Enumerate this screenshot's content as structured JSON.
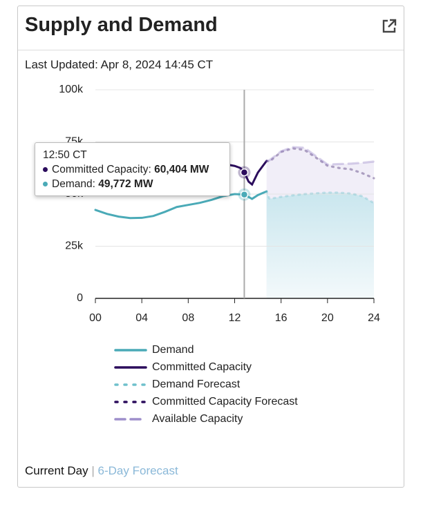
{
  "header": {
    "title": "Supply and Demand",
    "last_updated": "Last Updated: Apr 8, 2024 14:45 CT"
  },
  "chart_data": {
    "type": "line",
    "xlim": [
      0,
      24
    ],
    "xticks": [
      {
        "value": 0,
        "label": "00"
      },
      {
        "value": 4,
        "label": "04"
      },
      {
        "value": 8,
        "label": "08"
      },
      {
        "value": 12,
        "label": "12"
      },
      {
        "value": 16,
        "label": "16"
      },
      {
        "value": 20,
        "label": "20"
      },
      {
        "value": 24,
        "label": "24"
      }
    ],
    "ylim": [
      0,
      100000
    ],
    "yticks": [
      0,
      {
        "value": 25000,
        "label": "25k"
      },
      {
        "value": 50000,
        "label": "50k"
      },
      {
        "value": 75000,
        "label": "75k"
      },
      {
        "value": 100000,
        "label": "100k"
      }
    ],
    "grid": true,
    "series": [
      {
        "name": "Demand",
        "color": "#4aaab7",
        "style": "solid",
        "x": [
          0,
          1,
          2,
          3,
          4,
          5,
          6,
          7,
          8,
          9,
          10,
          11,
          12,
          12.83,
          13.5,
          14,
          14.75
        ],
        "values": [
          42400,
          40500,
          39200,
          38500,
          38600,
          39500,
          41500,
          43800,
          44800,
          45800,
          47200,
          49000,
          50000,
          49772,
          47700,
          49500,
          51300
        ]
      },
      {
        "name": "Committed Capacity",
        "color": "#2b0c5c",
        "style": "solid",
        "x": [
          11.5,
          12,
          12.5,
          12.83,
          13.2,
          13.5,
          14,
          14.75
        ],
        "values": [
          64000,
          63500,
          62500,
          60404,
          56000,
          54600,
          60300,
          65900
        ]
      },
      {
        "name": "Demand Forecast",
        "color": "#6fc0cc",
        "style": "dotted",
        "x": [
          14.75,
          15,
          16,
          17,
          18,
          19,
          20,
          21,
          22,
          23,
          24
        ],
        "values": [
          51300,
          47700,
          48700,
          49400,
          50000,
          50400,
          50700,
          50700,
          50300,
          49000,
          45700
        ]
      },
      {
        "name": "Committed Capacity Forecast",
        "color": "#2b0c5c",
        "style": "dotted",
        "x": [
          14.75,
          15,
          16,
          17,
          18,
          19,
          20,
          21,
          22,
          23,
          24
        ],
        "values": [
          65900,
          65600,
          70200,
          71900,
          71200,
          67500,
          63600,
          62500,
          61900,
          60000,
          57600
        ]
      },
      {
        "name": "Available Capacity",
        "color": "#8e7cc3",
        "style": "dashed",
        "x": [
          14.75,
          15,
          16,
          17,
          18,
          19,
          20,
          21,
          22,
          23,
          24
        ],
        "values": [
          65900,
          66200,
          70500,
          72500,
          72200,
          68200,
          64200,
          64400,
          64600,
          65000,
          65600
        ]
      }
    ],
    "tooltip": {
      "title": "12:50 CT",
      "items": [
        {
          "label": "Committed Capacity:",
          "value": 60404,
          "value_label": "60,404 MW",
          "color": "#2b0c5c"
        },
        {
          "label": "Demand:",
          "value": 49772,
          "value_label": "49,772 MW",
          "color": "#4aaab7"
        }
      ]
    }
  },
  "footer": {
    "current": "Current Day",
    "separator": "|",
    "link": "6-Day Forecast"
  }
}
